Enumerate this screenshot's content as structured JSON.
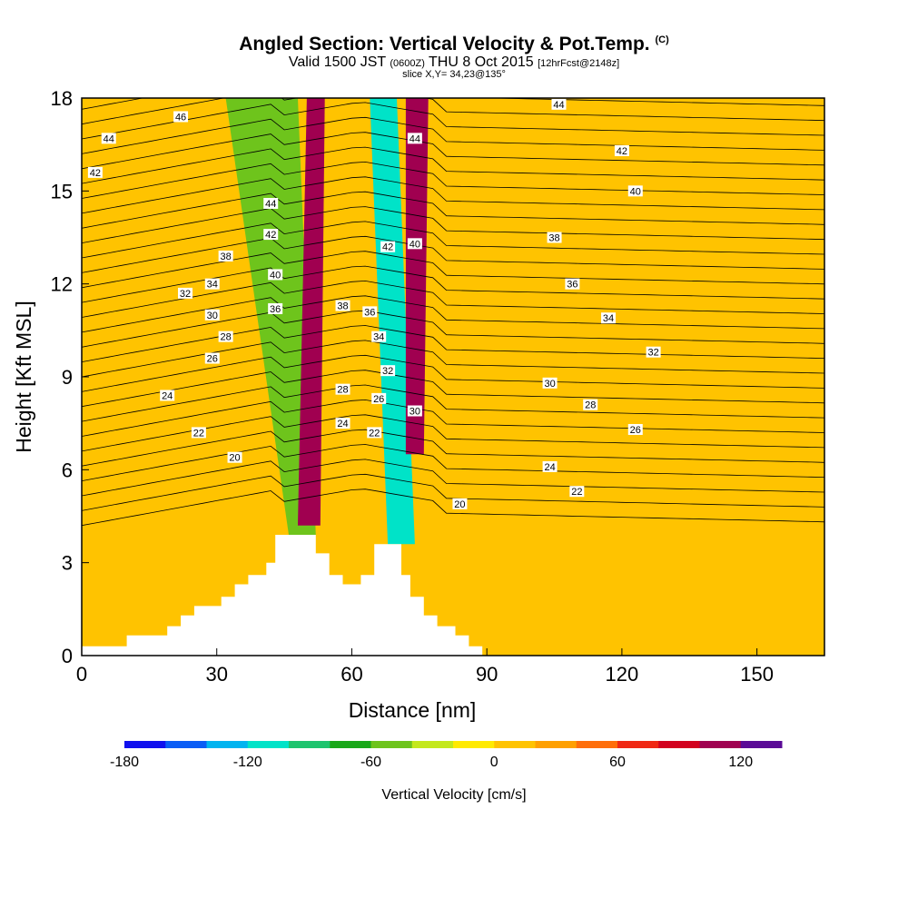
{
  "title": {
    "main": "Angled Section: Vertical Velocity & Pot.Temp.",
    "main_suffix": "(C)",
    "valid_prefix": "Valid 1500 JST",
    "valid_utc": "(0600Z)",
    "valid_date": "THU 8 Oct 2015",
    "valid_forecast": "[12hrFcst@2148z]",
    "slice": "slice X,Y= 34,23@135°"
  },
  "chart_data": {
    "type": "heatmap",
    "xlabel": "Distance [nm]",
    "ylabel": "Height [Kft MSL]",
    "xlim": [
      0,
      165
    ],
    "ylim": [
      0,
      18
    ],
    "xticks": [
      0,
      30,
      60,
      90,
      120,
      150
    ],
    "yticks": [
      0,
      3,
      6,
      9,
      12,
      15,
      18
    ],
    "field": "Vertical Velocity (cm/s), filled contours",
    "contour_field": "Potential Temperature (C), line contours",
    "colorbar": {
      "label": "Vertical Velocity [cm/s]",
      "levels": [
        -180,
        -160,
        -140,
        -120,
        -100,
        -80,
        -60,
        -40,
        -20,
        0,
        20,
        40,
        60,
        80,
        100,
        120,
        140
      ],
      "tick_labels": [
        "-180",
        "-120",
        "-60",
        "0",
        "60",
        "120"
      ],
      "tick_values": [
        -180,
        -120,
        -60,
        0,
        60,
        120
      ],
      "colors": [
        "#1010ee",
        "#0a5df5",
        "#00b4f0",
        "#00e3c8",
        "#1ec46e",
        "#19a81a",
        "#6ec41c",
        "#c3e81c",
        "#ffea00",
        "#ffc300",
        "#ffa000",
        "#ff6e0a",
        "#f02814",
        "#d2001e",
        "#a00050",
        "#5a0a96"
      ]
    },
    "terrain": [
      [
        0,
        0.3
      ],
      [
        10,
        0.3
      ],
      [
        10,
        0.65
      ],
      [
        19,
        0.65
      ],
      [
        19,
        0.95
      ],
      [
        22,
        0.95
      ],
      [
        22,
        1.3
      ],
      [
        25,
        1.3
      ],
      [
        25,
        1.6
      ],
      [
        31,
        1.6
      ],
      [
        31,
        1.9
      ],
      [
        34,
        1.9
      ],
      [
        34,
        2.3
      ],
      [
        37,
        2.3
      ],
      [
        37,
        2.6
      ],
      [
        41,
        2.6
      ],
      [
        41,
        3.0
      ],
      [
        43,
        3.0
      ],
      [
        43,
        3.9
      ],
      [
        52,
        3.9
      ],
      [
        52,
        3.3
      ],
      [
        55,
        3.3
      ],
      [
        55,
        2.6
      ],
      [
        58,
        2.6
      ],
      [
        58,
        2.3
      ],
      [
        62,
        2.3
      ],
      [
        62,
        2.6
      ],
      [
        65,
        2.6
      ],
      [
        65,
        3.6
      ],
      [
        71,
        3.6
      ],
      [
        71,
        2.6
      ],
      [
        73,
        2.6
      ],
      [
        73,
        1.9
      ],
      [
        76,
        1.9
      ],
      [
        76,
        1.3
      ],
      [
        79,
        1.3
      ],
      [
        79,
        0.95
      ],
      [
        83,
        0.95
      ],
      [
        83,
        0.65
      ],
      [
        86,
        0.65
      ],
      [
        86,
        0.3
      ],
      [
        89,
        0.3
      ],
      [
        89,
        0
      ],
      [
        0,
        0
      ]
    ],
    "updraft_bands": [
      {
        "name": "updraft-1",
        "value": 100,
        "polygon": [
          [
            48,
            4.2
          ],
          [
            53,
            4.2
          ],
          [
            54,
            18
          ],
          [
            50,
            18
          ]
        ]
      },
      {
        "name": "updraft-2",
        "value": 100,
        "polygon": [
          [
            72,
            6.5
          ],
          [
            76,
            6.5
          ],
          [
            77,
            18
          ],
          [
            72,
            18
          ]
        ]
      }
    ],
    "downdraft_bands": [
      {
        "name": "downdraft-1",
        "value": -60,
        "polygon": [
          [
            32,
            18
          ],
          [
            48,
            18
          ],
          [
            52,
            3.9
          ],
          [
            46,
            3.9
          ]
        ]
      },
      {
        "name": "downdraft-2",
        "value": -120,
        "polygon": [
          [
            64,
            18
          ],
          [
            70,
            18
          ],
          [
            74,
            3.6
          ],
          [
            68,
            3.6
          ]
        ]
      }
    ],
    "theta_contour_labels": [
      {
        "x": 22,
        "y": 17.4,
        "v": "46"
      },
      {
        "x": 6,
        "y": 16.7,
        "v": "44"
      },
      {
        "x": 3,
        "y": 15.6,
        "v": "42"
      },
      {
        "x": 42,
        "y": 14.6,
        "v": "44"
      },
      {
        "x": 42,
        "y": 13.6,
        "v": "42"
      },
      {
        "x": 32,
        "y": 12.9,
        "v": "38"
      },
      {
        "x": 43,
        "y": 12.3,
        "v": "40"
      },
      {
        "x": 29,
        "y": 12.0,
        "v": "34"
      },
      {
        "x": 23,
        "y": 11.7,
        "v": "32"
      },
      {
        "x": 43,
        "y": 11.2,
        "v": "36"
      },
      {
        "x": 29,
        "y": 11.0,
        "v": "30"
      },
      {
        "x": 32,
        "y": 10.3,
        "v": "28"
      },
      {
        "x": 29,
        "y": 9.6,
        "v": "26"
      },
      {
        "x": 19,
        "y": 8.4,
        "v": "24"
      },
      {
        "x": 26,
        "y": 7.2,
        "v": "22"
      },
      {
        "x": 34,
        "y": 6.4,
        "v": "20"
      },
      {
        "x": 58,
        "y": 11.3,
        "v": "38"
      },
      {
        "x": 64,
        "y": 11.1,
        "v": "36"
      },
      {
        "x": 66,
        "y": 10.3,
        "v": "34"
      },
      {
        "x": 68,
        "y": 9.2,
        "v": "32"
      },
      {
        "x": 58,
        "y": 8.6,
        "v": "28"
      },
      {
        "x": 66,
        "y": 8.3,
        "v": "26"
      },
      {
        "x": 58,
        "y": 7.5,
        "v": "24"
      },
      {
        "x": 65,
        "y": 7.2,
        "v": "22"
      },
      {
        "x": 68,
        "y": 13.2,
        "v": "42"
      },
      {
        "x": 74,
        "y": 13.3,
        "v": "40"
      },
      {
        "x": 74,
        "y": 16.7,
        "v": "44"
      },
      {
        "x": 74,
        "y": 7.9,
        "v": "30"
      },
      {
        "x": 106,
        "y": 17.8,
        "v": "44"
      },
      {
        "x": 120,
        "y": 16.3,
        "v": "42"
      },
      {
        "x": 123,
        "y": 15.0,
        "v": "40"
      },
      {
        "x": 105,
        "y": 13.5,
        "v": "38"
      },
      {
        "x": 109,
        "y": 12.0,
        "v": "36"
      },
      {
        "x": 117,
        "y": 10.9,
        "v": "34"
      },
      {
        "x": 127,
        "y": 9.8,
        "v": "32"
      },
      {
        "x": 104,
        "y": 8.8,
        "v": "30"
      },
      {
        "x": 113,
        "y": 8.1,
        "v": "28"
      },
      {
        "x": 123,
        "y": 7.3,
        "v": "26"
      },
      {
        "x": 104,
        "y": 6.1,
        "v": "24"
      },
      {
        "x": 110,
        "y": 5.3,
        "v": "22"
      },
      {
        "x": 84,
        "y": 4.9,
        "v": "20"
      }
    ]
  }
}
